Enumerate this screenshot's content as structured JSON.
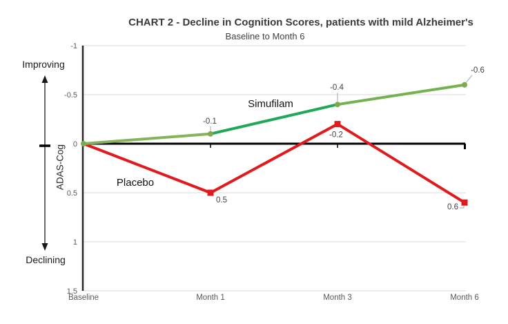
{
  "title": "CHART 2 - Decline in Cognition Scores, patients with mild Alzheimer's",
  "subtitle": "Baseline to Month 6",
  "annotations": {
    "improving": "Improving",
    "declining": "Declining",
    "y_axis_label": "ADAS-Cog"
  },
  "series_labels": {
    "simufilam": "Simufilam",
    "placebo": "Placebo"
  },
  "colors": {
    "green_segment_1": "#87b25c",
    "green_segment_2": "#1fa857",
    "green_segment_3": "#74b24f",
    "green_marker": "#7cab4e",
    "red": "#e11b1d",
    "grid": "#d9d9d9",
    "axis": "#262626",
    "zero_line": "#000000",
    "data_label_text": "#404040",
    "tick_text": "#595959",
    "leader_line": "#a6a6a6"
  },
  "chart_data": {
    "type": "line",
    "categories": [
      "Baseline",
      "Month 1",
      "Month 3",
      "Month 6"
    ],
    "series": [
      {
        "name": "Simufilam",
        "values": [
          0,
          -0.1,
          -0.4,
          -0.6
        ],
        "marker": "circle",
        "data_labels": [
          "",
          "-0.1",
          "-0.4",
          "-0.6"
        ]
      },
      {
        "name": "Placebo",
        "values": [
          0,
          0.5,
          -0.2,
          0.6
        ],
        "marker": "square",
        "data_labels": [
          "",
          "0.5",
          "-0.2",
          "0.6"
        ]
      }
    ],
    "title": "CHART 2 - Decline in Cognition Scores, patients with mild Alzheimer's",
    "subtitle": "Baseline to Month 6",
    "xlabel": "",
    "ylabel": "ADAS-Cog",
    "ylim": [
      -1,
      1.5
    ],
    "y_axis_inverted": true,
    "y_ticks": [
      "-1",
      "-0.5",
      "0",
      "0.5",
      "1",
      "1.5"
    ],
    "y_tick_values": [
      -1,
      -0.5,
      0,
      0.5,
      1,
      1.5
    ],
    "grid": true,
    "legend_position": "inline-labels"
  }
}
